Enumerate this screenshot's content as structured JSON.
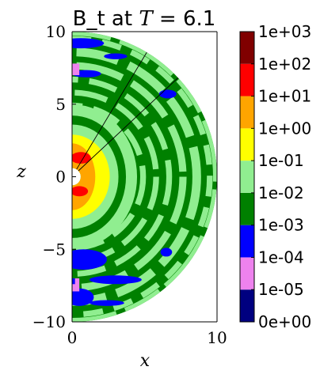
{
  "chart_data": {
    "type": "heatmap",
    "title": {
      "prefix": "B_t at ",
      "var": "T",
      "eq": " = ",
      "value": "6.1"
    },
    "xlabel": "x",
    "ylabel": "z",
    "xlim": [
      0,
      10
    ],
    "ylim": [
      -10,
      10
    ],
    "x_ticks": [
      {
        "value": 0,
        "label": "0"
      },
      {
        "value": 10,
        "label": "10"
      }
    ],
    "y_ticks": [
      {
        "value": 10,
        "label": "10"
      },
      {
        "value": 5,
        "label": "5"
      },
      {
        "value": 0,
        "label": "0"
      },
      {
        "value": -5,
        "label": "−5"
      },
      {
        "value": -10,
        "label": "−10"
      }
    ],
    "domain": "half-annulus, radius 0.5 to 10",
    "colorbar": {
      "scale": "log",
      "levels": [
        {
          "label": "0e+00",
          "color": "#000080"
        },
        {
          "label": "1e-05",
          "color": "#ee82ee"
        },
        {
          "label": "1e-04",
          "color": "#0000ff"
        },
        {
          "label": "1e-03",
          "color": "#008000"
        },
        {
          "label": "1e-02",
          "color": "#90ee90"
        },
        {
          "label": "1e-01",
          "color": "#ffff00"
        },
        {
          "label": "1e+00",
          "color": "#ffa500"
        },
        {
          "label": "1e+01",
          "color": "#ff0000"
        },
        {
          "label": "1e+02",
          "color": "#800000"
        },
        {
          "label": "1e+03",
          "color": null
        }
      ]
    },
    "radial_lines_deg": [
      59,
      43
    ]
  }
}
